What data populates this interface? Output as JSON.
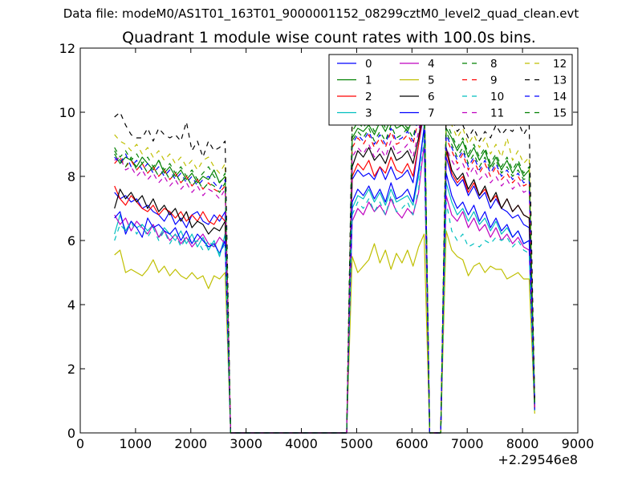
{
  "suptitle": "Data file: modeM0/AS1T01_163T01_9000001152_08299cztM0_level2_quad_clean.evt",
  "chart_data": {
    "type": "line",
    "title": "Quadrant 1 module wise count rates with 100.0s bins.",
    "xlabel": "",
    "ylabel": "",
    "x_offset_label": "+2.29546e8",
    "xlim": [
      0,
      9000
    ],
    "ylim": [
      0,
      12
    ],
    "x_ticks": [
      "0",
      "1000",
      "2000",
      "3000",
      "4000",
      "5000",
      "6000",
      "7000",
      "8000",
      "9000"
    ],
    "y_ticks": [
      "0",
      "2",
      "4",
      "6",
      "8",
      "10",
      "12"
    ],
    "grid": false,
    "legend_position": "top-right",
    "legend_columns": 4,
    "x": [
      620,
      720,
      820,
      920,
      1020,
      1120,
      1220,
      1320,
      1420,
      1520,
      1620,
      1720,
      1820,
      1920,
      2020,
      2120,
      2220,
      2320,
      2420,
      2520,
      2620,
      2720,
      2820,
      4820,
      4920,
      5020,
      5120,
      5220,
      5320,
      5420,
      5520,
      5620,
      5720,
      5820,
      5920,
      6020,
      6120,
      6220,
      6320,
      6520,
      6620,
      6720,
      6820,
      6920,
      7020,
      7120,
      7220,
      7320,
      7420,
      7520,
      7620,
      7720,
      7820,
      7920,
      8020,
      8120,
      8220
    ],
    "series": [
      {
        "name": "0",
        "color": "#0000ff",
        "dash": false,
        "values": [
          7.5,
          7.3,
          7.4,
          7.2,
          7.3,
          7.0,
          7.1,
          6.9,
          6.8,
          6.6,
          6.9,
          6.5,
          6.7,
          6.4,
          6.8,
          6.9,
          6.6,
          6.5,
          6.8,
          6.6,
          6.9,
          0.0,
          0.0,
          0.0,
          7.9,
          8.2,
          8.0,
          8.1,
          7.9,
          8.3,
          7.9,
          8.3,
          7.9,
          8.0,
          8.2,
          7.8,
          9.0,
          10.0,
          0.0,
          0.0,
          8.6,
          8.0,
          7.7,
          7.9,
          7.4,
          7.7,
          7.3,
          7.5,
          7.0,
          7.3,
          7.0,
          6.9,
          6.7,
          6.8,
          6.5,
          6.4,
          0.8
        ]
      },
      {
        "name": "1",
        "color": "#008000",
        "dash": false,
        "values": [
          8.7,
          8.4,
          8.6,
          8.5,
          8.3,
          8.6,
          8.4,
          8.2,
          8.5,
          8.1,
          8.3,
          8.0,
          8.2,
          7.9,
          8.1,
          7.8,
          8.0,
          7.9,
          8.2,
          7.8,
          8.0,
          0.0,
          0.0,
          0.0,
          9.2,
          9.5,
          9.4,
          9.6,
          9.3,
          9.7,
          9.4,
          9.8,
          9.5,
          9.6,
          9.4,
          9.8,
          10.3,
          11.0,
          0.0,
          0.0,
          9.5,
          9.2,
          8.8,
          9.1,
          8.6,
          8.9,
          8.5,
          8.8,
          8.3,
          8.6,
          8.2,
          8.5,
          8.1,
          8.4,
          8.0,
          8.2,
          0.9
        ]
      },
      {
        "name": "2",
        "color": "#ff0000",
        "dash": false,
        "values": [
          7.7,
          7.3,
          7.1,
          7.4,
          7.2,
          7.0,
          6.9,
          7.1,
          6.8,
          7.0,
          6.9,
          6.7,
          6.9,
          6.6,
          6.8,
          6.6,
          6.9,
          6.6,
          6.5,
          6.8,
          6.6,
          0.0,
          0.0,
          0.0,
          8.0,
          8.4,
          8.2,
          8.5,
          8.0,
          8.3,
          8.1,
          8.6,
          8.2,
          8.1,
          8.4,
          8.0,
          9.0,
          10.2,
          0.0,
          0.0,
          8.8,
          8.1,
          7.8,
          8.0,
          7.5,
          7.8,
          7.4,
          7.6,
          7.2,
          7.4,
          7.0,
          7.3,
          6.9,
          7.1,
          6.8,
          6.7,
          0.8
        ]
      },
      {
        "name": "3",
        "color": "#00bfbf",
        "dash": false,
        "values": [
          6.2,
          6.8,
          6.3,
          6.6,
          6.4,
          6.5,
          6.3,
          6.5,
          6.1,
          6.4,
          6.2,
          6.0,
          6.3,
          5.9,
          6.2,
          5.8,
          6.1,
          5.7,
          6.0,
          5.5,
          6.2,
          0.0,
          0.0,
          0.0,
          7.0,
          7.4,
          7.3,
          7.6,
          7.2,
          7.5,
          7.1,
          7.6,
          7.2,
          7.3,
          7.4,
          7.1,
          8.0,
          9.6,
          0.0,
          0.0,
          7.8,
          7.2,
          6.8,
          7.0,
          6.6,
          6.9,
          6.5,
          6.7,
          6.3,
          6.6,
          6.2,
          6.4,
          6.1,
          6.3,
          5.9,
          6.0,
          0.7
        ]
      },
      {
        "name": "4",
        "color": "#bf00bf",
        "dash": false,
        "values": [
          6.8,
          6.5,
          6.7,
          6.3,
          6.6,
          6.4,
          6.2,
          6.5,
          6.1,
          6.3,
          6.0,
          6.2,
          5.9,
          6.1,
          5.8,
          6.0,
          6.2,
          5.9,
          5.8,
          6.1,
          5.9,
          0.0,
          0.0,
          0.0,
          6.6,
          7.0,
          6.8,
          7.2,
          6.9,
          7.1,
          6.8,
          7.3,
          6.9,
          6.7,
          7.0,
          6.8,
          7.5,
          9.0,
          0.0,
          0.0,
          7.4,
          6.8,
          6.6,
          6.9,
          6.4,
          6.7,
          6.3,
          6.5,
          6.1,
          6.4,
          6.0,
          6.2,
          5.9,
          6.1,
          5.8,
          5.7,
          0.7
        ]
      },
      {
        "name": "5",
        "color": "#bfbf00",
        "dash": false,
        "values": [
          5.55,
          5.7,
          5.0,
          5.1,
          5.0,
          4.9,
          5.1,
          5.4,
          5.0,
          5.2,
          4.9,
          5.1,
          4.9,
          4.8,
          5.0,
          4.8,
          4.9,
          4.5,
          4.9,
          4.8,
          5.0,
          0.0,
          0.0,
          0.0,
          5.5,
          5.0,
          5.2,
          5.4,
          5.9,
          5.3,
          5.7,
          5.1,
          5.6,
          5.3,
          5.7,
          5.2,
          5.8,
          6.2,
          0.0,
          0.0,
          6.3,
          5.7,
          5.5,
          5.4,
          4.9,
          5.2,
          5.3,
          5.0,
          5.2,
          5.1,
          5.1,
          4.8,
          4.9,
          5.0,
          4.8,
          4.8,
          0.6
        ]
      },
      {
        "name": "6",
        "color": "#000000",
        "dash": false,
        "values": [
          7.0,
          7.6,
          7.3,
          7.5,
          7.2,
          7.4,
          7.0,
          7.3,
          6.9,
          7.1,
          6.8,
          7.0,
          6.6,
          6.9,
          6.4,
          6.6,
          6.5,
          6.2,
          6.4,
          6.3,
          6.6,
          0.0,
          0.0,
          0.0,
          8.3,
          8.8,
          8.6,
          8.9,
          8.5,
          8.7,
          8.4,
          8.9,
          8.5,
          8.6,
          8.8,
          8.4,
          9.2,
          10.3,
          0.0,
          0.0,
          8.9,
          8.2,
          7.9,
          8.1,
          7.6,
          7.9,
          7.4,
          7.7,
          7.2,
          7.5,
          7.0,
          7.3,
          6.9,
          7.1,
          6.8,
          6.7,
          0.8
        ]
      },
      {
        "name": "7",
        "color": "#0000ff",
        "dash": false,
        "values": [
          6.7,
          6.9,
          6.2,
          6.6,
          6.4,
          6.1,
          6.7,
          6.4,
          6.5,
          6.3,
          6.2,
          6.4,
          6.0,
          6.3,
          5.9,
          6.2,
          6.0,
          5.8,
          5.9,
          5.6,
          6.0,
          0.0,
          0.0,
          0.0,
          7.2,
          7.6,
          7.4,
          7.7,
          7.3,
          7.6,
          7.2,
          7.8,
          7.3,
          7.4,
          7.6,
          7.2,
          8.2,
          9.5,
          0.0,
          0.0,
          8.1,
          7.4,
          7.0,
          7.2,
          6.8,
          7.1,
          6.6,
          6.9,
          6.4,
          6.7,
          6.3,
          6.5,
          6.1,
          6.3,
          5.9,
          6.0,
          0.7
        ]
      },
      {
        "name": "8",
        "color": "#008000",
        "dash": true,
        "values": [
          8.9,
          8.6,
          8.8,
          8.5,
          8.7,
          8.4,
          8.6,
          8.3,
          8.5,
          8.2,
          8.4,
          8.1,
          8.3,
          8.0,
          8.2,
          7.9,
          8.1,
          8.3,
          8.0,
          7.8,
          8.1,
          0.0,
          0.0,
          0.0,
          9.4,
          9.7,
          9.5,
          9.8,
          9.4,
          9.9,
          9.5,
          10.0,
          9.6,
          9.7,
          9.5,
          9.9,
          10.2,
          10.9,
          0.0,
          0.0,
          9.7,
          9.3,
          8.9,
          9.2,
          8.7,
          9.0,
          8.6,
          8.9,
          8.4,
          8.7,
          8.3,
          8.6,
          8.2,
          8.5,
          8.1,
          8.3,
          0.9
        ]
      },
      {
        "name": "9",
        "color": "#ff0000",
        "dash": true,
        "values": [
          8.4,
          8.6,
          8.3,
          8.5,
          8.2,
          8.4,
          8.1,
          8.3,
          8.0,
          8.2,
          7.9,
          8.1,
          7.8,
          8.0,
          7.7,
          7.9,
          7.6,
          7.8,
          7.6,
          7.5,
          7.7,
          0.0,
          0.0,
          0.0,
          8.9,
          9.2,
          9.0,
          9.3,
          8.9,
          9.2,
          8.9,
          9.4,
          9.0,
          9.1,
          9.3,
          9.0,
          9.8,
          10.6,
          0.0,
          0.0,
          9.2,
          8.8,
          8.4,
          8.7,
          8.2,
          8.5,
          8.1,
          8.4,
          8.0,
          8.3,
          7.9,
          8.1,
          7.8,
          8.0,
          7.7,
          7.8,
          0.8
        ]
      },
      {
        "name": "10",
        "color": "#00bfbf",
        "dash": true,
        "values": [
          6.0,
          6.5,
          6.3,
          6.6,
          6.2,
          6.5,
          6.1,
          6.4,
          6.0,
          6.3,
          5.9,
          6.2,
          5.8,
          6.1,
          5.9,
          6.0,
          5.7,
          6.0,
          5.8,
          5.6,
          5.9,
          0.0,
          0.0,
          0.0,
          6.8,
          7.2,
          7.0,
          7.3,
          6.9,
          7.2,
          6.8,
          7.4,
          6.9,
          7.0,
          7.2,
          6.8,
          7.6,
          9.2,
          0.0,
          0.0,
          7.2,
          6.3,
          6.0,
          6.2,
          5.8,
          5.9,
          5.8,
          6.0,
          5.9,
          6.1,
          6.0,
          6.1,
          5.8,
          6.0,
          5.7,
          5.6,
          0.7
        ]
      },
      {
        "name": "11",
        "color": "#bf00bf",
        "dash": true,
        "values": [
          8.5,
          8.6,
          8.2,
          8.3,
          8.0,
          8.2,
          7.9,
          8.1,
          7.8,
          8.0,
          7.7,
          7.9,
          7.6,
          7.8,
          7.5,
          7.7,
          7.4,
          7.6,
          7.5,
          7.3,
          7.6,
          0.0,
          0.0,
          0.0,
          8.6,
          8.9,
          8.7,
          9.0,
          8.6,
          8.9,
          8.6,
          9.1,
          8.7,
          8.8,
          9.0,
          8.6,
          9.4,
          10.4,
          0.0,
          0.0,
          8.9,
          8.5,
          8.2,
          8.4,
          8.0,
          8.3,
          7.9,
          8.1,
          7.8,
          8.0,
          7.7,
          7.9,
          7.6,
          7.8,
          7.5,
          7.6,
          0.8
        ]
      },
      {
        "name": "12",
        "color": "#bfbf00",
        "dash": true,
        "values": [
          9.3,
          9.1,
          9.0,
          8.8,
          9.0,
          8.7,
          8.9,
          8.6,
          8.8,
          8.5,
          8.7,
          8.4,
          8.6,
          8.3,
          8.5,
          8.2,
          8.5,
          8.6,
          8.3,
          8.1,
          8.4,
          0.0,
          0.0,
          0.0,
          9.6,
          9.9,
          9.7,
          10.0,
          9.6,
          10.1,
          9.7,
          10.2,
          9.8,
          9.9,
          9.7,
          10.1,
          10.4,
          10.9,
          0.0,
          0.0,
          9.9,
          9.6,
          9.2,
          9.5,
          9.0,
          9.3,
          8.9,
          9.2,
          8.7,
          9.0,
          8.6,
          9.2,
          8.5,
          8.8,
          8.4,
          8.6,
          0.9
        ]
      },
      {
        "name": "13",
        "color": "#000000",
        "dash": true,
        "values": [
          9.85,
          10.0,
          9.6,
          9.3,
          9.2,
          9.2,
          9.5,
          9.1,
          9.5,
          9.3,
          9.2,
          9.3,
          9.1,
          9.7,
          8.8,
          9.1,
          8.6,
          9.1,
          8.8,
          8.9,
          9.1,
          0.0,
          0.0,
          0.0,
          10.0,
          10.3,
          10.1,
          10.4,
          10.0,
          10.3,
          10.0,
          10.5,
          10.1,
          10.2,
          10.4,
          10.0,
          10.5,
          11.0,
          0.0,
          0.0,
          10.0,
          9.8,
          9.4,
          9.6,
          9.2,
          9.5,
          9.1,
          9.4,
          9.2,
          9.6,
          9.3,
          9.5,
          9.4,
          9.7,
          9.3,
          9.6,
          1.0
        ]
      },
      {
        "name": "14",
        "color": "#0000ff",
        "dash": true,
        "values": [
          8.6,
          8.4,
          8.7,
          8.3,
          8.5,
          8.2,
          8.4,
          8.1,
          8.3,
          8.0,
          8.2,
          7.9,
          8.1,
          7.8,
          8.0,
          7.7,
          7.9,
          8.0,
          7.8,
          7.6,
          7.9,
          0.0,
          0.0,
          0.0,
          9.0,
          9.3,
          9.1,
          9.4,
          9.0,
          9.3,
          9.0,
          9.5,
          9.1,
          9.2,
          9.4,
          9.1,
          9.9,
          10.7,
          0.0,
          0.0,
          9.3,
          8.9,
          8.5,
          8.8,
          8.3,
          8.6,
          8.2,
          8.5,
          8.1,
          8.4,
          8.0,
          8.2,
          7.9,
          8.1,
          7.8,
          7.9,
          0.9
        ]
      },
      {
        "name": "15",
        "color": "#008000",
        "dash": true,
        "values": [
          8.8,
          8.5,
          8.3,
          8.6,
          8.2,
          8.4,
          8.1,
          8.3,
          8.0,
          8.2,
          7.9,
          8.1,
          7.8,
          8.0,
          7.7,
          7.9,
          7.6,
          7.8,
          7.7,
          7.5,
          7.8,
          0.0,
          0.0,
          0.0,
          9.1,
          9.4,
          9.2,
          9.5,
          9.1,
          9.4,
          9.1,
          9.6,
          9.2,
          9.3,
          9.5,
          9.2,
          10.0,
          10.8,
          0.0,
          0.0,
          9.4,
          9.0,
          8.6,
          8.9,
          8.4,
          8.7,
          8.3,
          8.6,
          8.2,
          8.5,
          8.1,
          8.3,
          8.0,
          8.2,
          7.9,
          8.0,
          0.9
        ]
      }
    ]
  }
}
